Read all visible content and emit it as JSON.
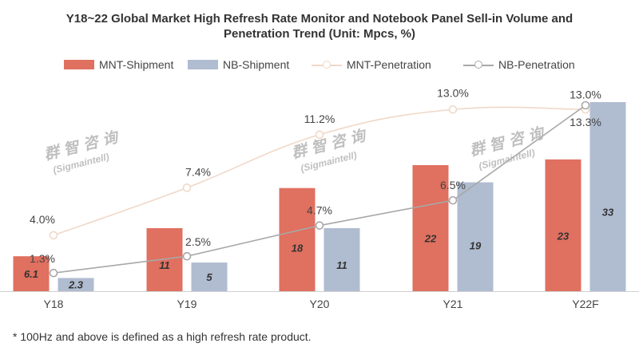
{
  "title_line1": "Y18~22 Global Market High Refresh Rate Monitor and Notebook Panel Sell-in Volume and",
  "title_line2": "Penetration Trend (Unit: Mpcs, %)",
  "footnote": "* 100Hz and above is defined as a high refresh rate product.",
  "watermark": {
    "cn": "群智咨询",
    "en": "(Sigmaintell)"
  },
  "colors": {
    "mnt_bar": "#E07060",
    "nb_bar": "#B0BCD0",
    "mnt_line": "#F0D8C8",
    "nb_line": "#A8A8A8"
  },
  "chart_data": {
    "type": "bar",
    "title": "Y18~22 Global Market High Refresh Rate Monitor and Notebook Panel Sell-in Volume and Penetration Trend (Unit: Mpcs, %)",
    "categories": [
      "Y18",
      "Y19",
      "Y20",
      "Y21",
      "Y22F"
    ],
    "series": [
      {
        "name": "MNT-Shipment",
        "kind": "bar",
        "values": [
          6.1,
          11,
          18,
          22,
          23
        ],
        "labels": [
          "6.1",
          "11",
          "18",
          "22",
          "23"
        ]
      },
      {
        "name": "NB-Shipment",
        "kind": "bar",
        "values": [
          2.3,
          5,
          11,
          19,
          33
        ],
        "labels": [
          "2.3",
          "5",
          "11",
          "19",
          "33"
        ]
      },
      {
        "name": "MNT-Penetration",
        "kind": "line",
        "values": [
          4.0,
          7.4,
          11.2,
          13.0,
          13.0
        ],
        "labels": [
          "4.0%",
          "7.4%",
          "11.2%",
          "13.0%",
          "13.0%"
        ]
      },
      {
        "name": "NB-Penetration",
        "kind": "line",
        "values": [
          1.3,
          2.5,
          4.7,
          6.5,
          13.3
        ],
        "labels": [
          "1.3%",
          "2.5%",
          "4.7%",
          "6.5%",
          "13.3%"
        ]
      }
    ],
    "bar_ylim": [
      0,
      35
    ],
    "line_ylim": [
      0,
      16
    ],
    "legend": "top-center"
  }
}
